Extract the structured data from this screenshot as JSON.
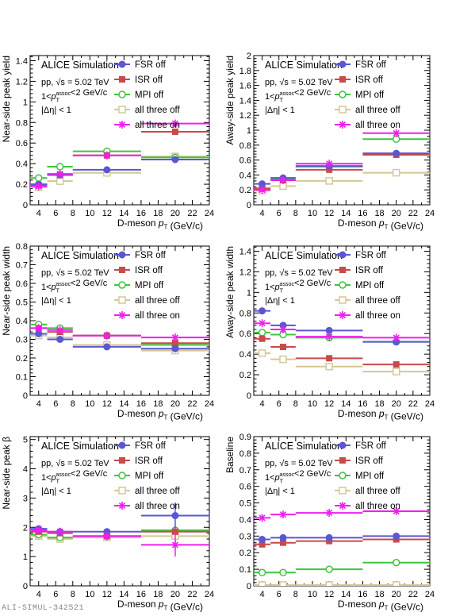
{
  "footer": "ALI-SIMUL-342521",
  "legend": [
    {
      "name": "FSR off",
      "color": "#5a57d4",
      "marker": "circle-filled"
    },
    {
      "name": "ISR off",
      "color": "#c84a4a",
      "marker": "square-filled"
    },
    {
      "name": "MPI off",
      "color": "#3fc43f",
      "marker": "circle-open"
    },
    {
      "name": "all three off",
      "color": "#d4c898",
      "marker": "square-open"
    },
    {
      "name": "all three on",
      "color": "#f01ef0",
      "marker": "star"
    }
  ],
  "annotation": {
    "title": "ALICE Simulation",
    "system": "pp, √s = 5.02 TeV",
    "assoc": "1<p_T^assoc<2 GeV/c",
    "deta": "|Δη| < 1"
  },
  "chart_data": [
    {
      "type": "scatter",
      "ylabel": "Near-side peak yield",
      "xlabel": "D-meson p_T (GeV/c)",
      "xlim": [
        3,
        24
      ],
      "ylim": [
        0,
        1.45
      ],
      "yticks": [
        0,
        0.2,
        0.4,
        0.6,
        0.8,
        1,
        1.2,
        1.4
      ],
      "bins": [
        [
          3,
          5
        ],
        [
          5,
          8
        ],
        [
          8,
          16
        ],
        [
          16,
          24
        ]
      ],
      "x": [
        4,
        6.5,
        12,
        20
      ],
      "series": [
        {
          "name": "FSR off",
          "values": [
            0.2,
            0.29,
            0.34,
            0.44
          ]
        },
        {
          "name": "ISR off",
          "values": [
            0.19,
            0.29,
            0.48,
            0.71
          ]
        },
        {
          "name": "MPI off",
          "values": [
            0.26,
            0.37,
            0.52,
            0.46
          ]
        },
        {
          "name": "all three off",
          "values": [
            0.17,
            0.23,
            0.31,
            0.47
          ]
        },
        {
          "name": "all three on",
          "values": [
            0.18,
            0.3,
            0.48,
            0.79
          ]
        }
      ]
    },
    {
      "type": "scatter",
      "ylabel": "Away-side peak yield",
      "xlabel": "D-meson p_T (GeV/c)",
      "xlim": [
        3,
        24
      ],
      "ylim": [
        0,
        2
      ],
      "yticks": [
        0,
        0.2,
        0.4,
        0.6,
        0.8,
        1,
        1.2,
        1.4,
        1.6,
        1.8,
        2
      ],
      "bins": [
        [
          3,
          5
        ],
        [
          5,
          8
        ],
        [
          8,
          16
        ],
        [
          16,
          24
        ]
      ],
      "x": [
        4,
        6.5,
        12,
        20
      ],
      "series": [
        {
          "name": "FSR off",
          "values": [
            0.28,
            0.36,
            0.52,
            0.69
          ]
        },
        {
          "name": "ISR off",
          "values": [
            0.22,
            0.33,
            0.47,
            0.67
          ]
        },
        {
          "name": "MPI off",
          "values": [
            0.22,
            0.34,
            0.51,
            0.88
          ]
        },
        {
          "name": "all three off",
          "values": [
            0.19,
            0.25,
            0.32,
            0.43
          ]
        },
        {
          "name": "all three on",
          "values": [
            0.2,
            0.33,
            0.55,
            0.96
          ]
        }
      ]
    },
    {
      "type": "scatter",
      "ylabel": "Near-side peak width",
      "xlabel": "D-meson p_T (GeV/c)",
      "xlim": [
        3,
        24
      ],
      "ylim": [
        0,
        0.8
      ],
      "yticks": [
        0,
        0.1,
        0.2,
        0.3,
        0.4,
        0.5,
        0.6,
        0.7,
        0.8
      ],
      "bins": [
        [
          3,
          5
        ],
        [
          5,
          8
        ],
        [
          8,
          16
        ],
        [
          16,
          24
        ]
      ],
      "x": [
        4,
        6.5,
        12,
        20
      ],
      "series": [
        {
          "name": "FSR off",
          "values": [
            0.33,
            0.3,
            0.26,
            0.25
          ]
        },
        {
          "name": "ISR off",
          "values": [
            0.36,
            0.34,
            0.32,
            0.28
          ]
        },
        {
          "name": "MPI off",
          "values": [
            0.38,
            0.36,
            0.32,
            0.27
          ]
        },
        {
          "name": "all three off",
          "values": [
            0.32,
            0.31,
            0.27,
            0.24
          ]
        },
        {
          "name": "all three on",
          "values": [
            0.36,
            0.35,
            0.32,
            0.31
          ]
        }
      ]
    },
    {
      "type": "scatter",
      "ylabel": "Away-side peak width",
      "xlabel": "D-meson p_T (GeV/c)",
      "xlim": [
        3,
        24
      ],
      "ylim": [
        0,
        1.45
      ],
      "yticks": [
        0,
        0.2,
        0.4,
        0.6,
        0.8,
        1,
        1.2,
        1.4
      ],
      "bins": [
        [
          3,
          5
        ],
        [
          5,
          8
        ],
        [
          8,
          16
        ],
        [
          16,
          24
        ]
      ],
      "x": [
        4,
        6.5,
        12,
        20
      ],
      "series": [
        {
          "name": "FSR off",
          "values": [
            0.82,
            0.68,
            0.63,
            0.52
          ]
        },
        {
          "name": "ISR off",
          "values": [
            0.55,
            0.47,
            0.36,
            0.3
          ]
        },
        {
          "name": "MPI off",
          "values": [
            0.61,
            0.59,
            0.56,
            0.52
          ]
        },
        {
          "name": "all three off",
          "values": [
            0.41,
            0.35,
            0.28,
            0.23
          ]
        },
        {
          "name": "all three on",
          "values": [
            0.7,
            0.64,
            0.57,
            0.56
          ]
        }
      ]
    },
    {
      "type": "scatter",
      "ylabel": "Near-side peak β",
      "xlabel": "D-meson p_T (GeV/c)",
      "xlim": [
        3,
        24
      ],
      "ylim": [
        0,
        5.1
      ],
      "yticks": [
        0,
        1,
        2,
        3,
        4,
        5
      ],
      "bins": [
        [
          3,
          5
        ],
        [
          5,
          8
        ],
        [
          8,
          16
        ],
        [
          16,
          24
        ]
      ],
      "x": [
        4,
        6.5,
        12,
        20
      ],
      "errors": {
        "FSR off": [
          0.1,
          0.1,
          0.1,
          0.45
        ],
        "all three on": [
          0.1,
          0.1,
          0.1,
          0.4
        ]
      },
      "series": [
        {
          "name": "FSR off",
          "values": [
            1.95,
            1.85,
            1.85,
            2.4
          ]
        },
        {
          "name": "ISR off",
          "values": [
            1.85,
            1.8,
            1.7,
            1.85
          ]
        },
        {
          "name": "MPI off",
          "values": [
            1.75,
            1.65,
            1.7,
            1.9
          ]
        },
        {
          "name": "all three off",
          "values": [
            1.7,
            1.6,
            1.65,
            1.7
          ]
        },
        {
          "name": "all three on",
          "values": [
            1.9,
            1.85,
            1.7,
            1.4
          ]
        }
      ]
    },
    {
      "type": "scatter",
      "ylabel": "Baseline",
      "xlabel": "D-meson p_T (GeV/c)",
      "xlim": [
        3,
        24
      ],
      "ylim": [
        0,
        0.9
      ],
      "yticks": [
        0,
        0.1,
        0.2,
        0.3,
        0.4,
        0.5,
        0.6,
        0.7,
        0.8,
        0.9
      ],
      "bins": [
        [
          3,
          5
        ],
        [
          5,
          8
        ],
        [
          8,
          16
        ],
        [
          16,
          24
        ]
      ],
      "x": [
        4,
        6.5,
        12,
        20
      ],
      "series": [
        {
          "name": "FSR off",
          "values": [
            0.28,
            0.29,
            0.29,
            0.3
          ]
        },
        {
          "name": "ISR off",
          "values": [
            0.25,
            0.26,
            0.27,
            0.28
          ]
        },
        {
          "name": "MPI off",
          "values": [
            0.08,
            0.08,
            0.1,
            0.14
          ]
        },
        {
          "name": "all three off",
          "values": [
            0.005,
            0.005,
            0.005,
            0.005
          ]
        },
        {
          "name": "all three on",
          "values": [
            0.41,
            0.43,
            0.44,
            0.45
          ]
        }
      ]
    }
  ]
}
